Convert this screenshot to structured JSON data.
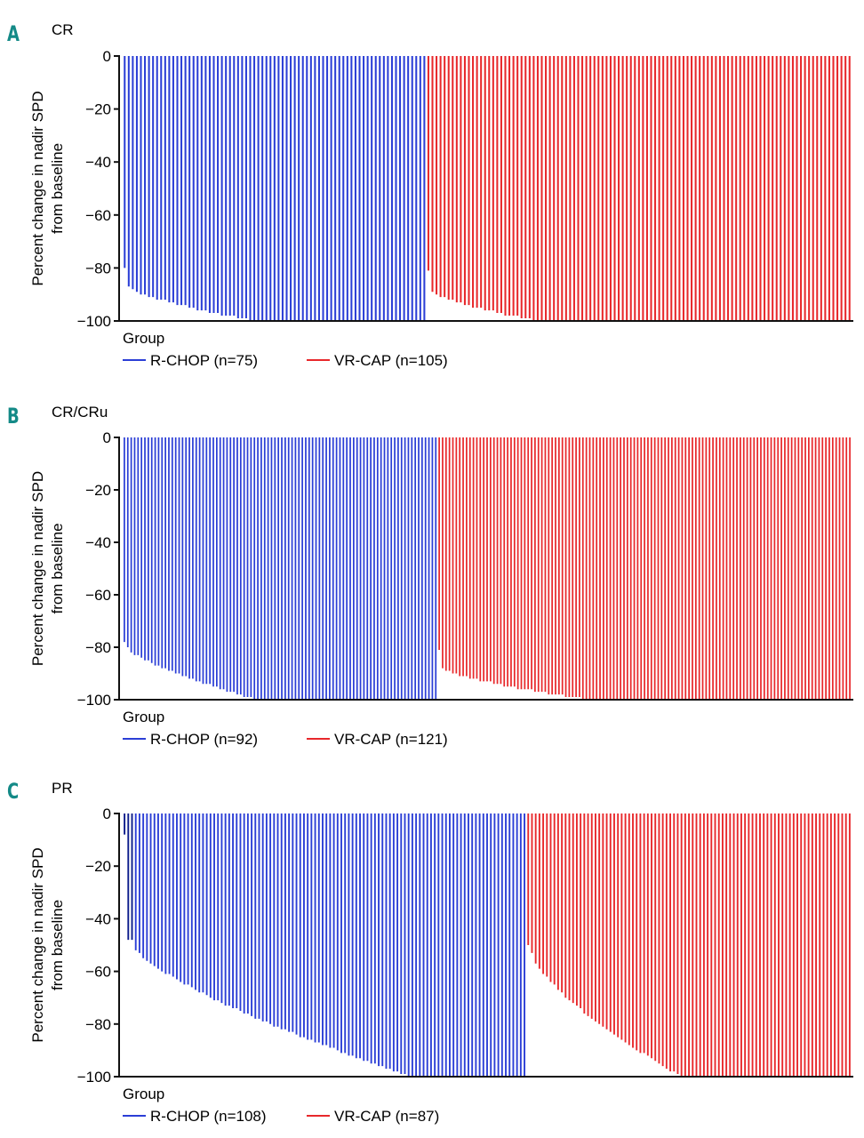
{
  "chart_data": [
    {
      "type": "bar",
      "panel_letter": "A",
      "title": "CR",
      "ylabel": "Percent change in nadir SPD\nfrom baseline",
      "xlabel": "Group",
      "ylim": [
        -100,
        0
      ],
      "yticks": [
        0,
        -20,
        -40,
        -60,
        -80,
        -100
      ],
      "legend": [
        {
          "name": "R-CHOP (n=75)",
          "color": "#2b3ed6"
        },
        {
          "name": "VR-CAP (n=105)",
          "color": "#e8282b"
        }
      ],
      "series": [
        {
          "name": "R-CHOP",
          "n": 75,
          "color": "#2b3ed6",
          "values_desc": "sorted waterfall: -80 to -100; ~33 bars above -100, rest at -100",
          "shape": {
            "start": -80,
            "step1": -87,
            "reach_full_at": 0.42
          }
        },
        {
          "name": "VR-CAP",
          "n": 105,
          "color": "#e8282b",
          "shape": {
            "start": -81,
            "step1": -89,
            "reach_full_at": 0.26
          }
        }
      ]
    },
    {
      "type": "bar",
      "panel_letter": "B",
      "title": "CR/CRu",
      "ylabel": "Percent change in nadir SPD\nfrom baseline",
      "xlabel": "Group",
      "ylim": [
        -100,
        0
      ],
      "yticks": [
        0,
        -20,
        -40,
        -60,
        -80,
        -100
      ],
      "legend": [
        {
          "name": "R-CHOP (n=92)",
          "color": "#2b3ed6"
        },
        {
          "name": "VR-CAP (n=121)",
          "color": "#e8282b"
        }
      ],
      "series": [
        {
          "name": "R-CHOP",
          "n": 92,
          "color": "#2b3ed6",
          "shape": {
            "start": -78,
            "step1": -80,
            "reach_full_at": 0.42
          }
        },
        {
          "name": "VR-CAP",
          "n": 121,
          "color": "#e8282b",
          "shape": {
            "start": -81,
            "step1": -88,
            "reach_full_at": 0.36
          }
        }
      ]
    },
    {
      "type": "bar",
      "panel_letter": "C",
      "title": "PR",
      "ylabel": "Percent change in nadir SPD\nfrom baseline",
      "xlabel": "Group",
      "ylim": [
        -100,
        0
      ],
      "yticks": [
        0,
        -20,
        -40,
        -60,
        -80,
        -100
      ],
      "legend": [
        {
          "name": "R-CHOP (n=108)",
          "color": "#2b3ed6"
        },
        {
          "name": "VR-CAP (n=87)",
          "color": "#e8282b"
        }
      ],
      "series": [
        {
          "name": "R-CHOP",
          "n": 108,
          "color": "#2b3ed6",
          "shape": {
            "start": -8,
            "step1": -48,
            "lead_dark": 3,
            "reach_full_at": 0.71
          }
        },
        {
          "name": "VR-CAP",
          "n": 87,
          "color": "#e8282b",
          "shape": {
            "start": -50,
            "step1": -53,
            "reach_full_at": 0.47
          }
        }
      ]
    }
  ]
}
